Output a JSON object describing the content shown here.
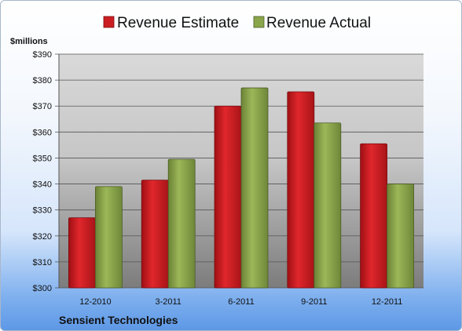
{
  "chart_data": {
    "type": "bar",
    "categories": [
      "12-2010",
      "3-2011",
      "6-2011",
      "9-2011",
      "12-2011"
    ],
    "series": [
      {
        "name": "Revenue Estimate",
        "values": [
          327,
          341.5,
          370,
          375.5,
          355.5
        ],
        "color": "#cc1e22"
      },
      {
        "name": "Revenue Actual",
        "values": [
          339,
          349.5,
          377,
          363.5,
          340
        ],
        "color": "#8aa64a"
      }
    ],
    "ylabel": "$millions",
    "ylim": [
      300,
      390
    ],
    "yticks": [
      "$300",
      "$310",
      "$320",
      "$330",
      "$340",
      "$350",
      "$360",
      "$370",
      "$380",
      "$390"
    ],
    "grid": true,
    "legend": "top"
  },
  "footer": {
    "company": "Sensient Technologies"
  }
}
